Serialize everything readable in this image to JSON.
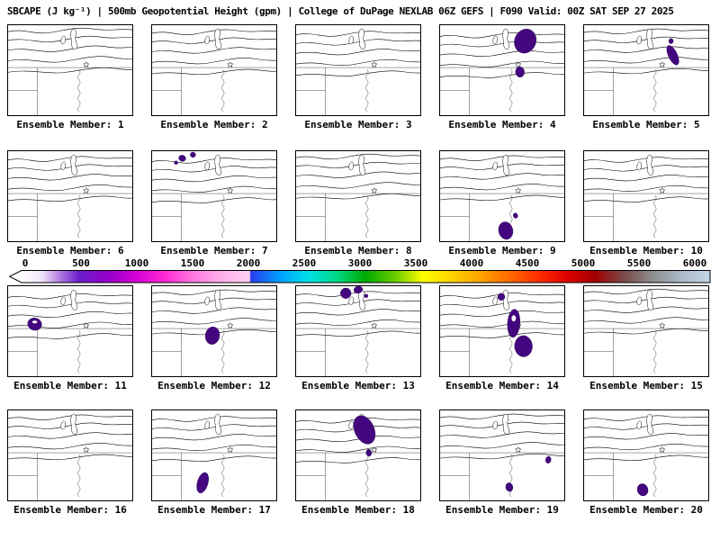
{
  "title": "SBCAPE (J kg⁻¹) | 500mb Geopotential Height (gpm) | College of DuPage NEXLAB 06Z GEFS | F090 Valid: 00Z SAT SEP 27 2025",
  "colors": {
    "line": "#000000",
    "border": "#444444",
    "cape_fill": "#43067e",
    "cape_stroke": "#2a0550"
  },
  "colorbar": {
    "min": 0,
    "max": 6000,
    "ticks": [
      "0",
      "500",
      "1000",
      "1500",
      "2000",
      "2500",
      "3000",
      "3500",
      "4000",
      "4500",
      "5000",
      "5500",
      "6000"
    ],
    "gradient": [
      [
        0,
        "#ffffff"
      ],
      [
        0.03,
        "#efe2f7"
      ],
      [
        0.055,
        "#b27fe0"
      ],
      [
        0.083,
        "#6a1fc8"
      ],
      [
        0.125,
        "#9400c8"
      ],
      [
        0.167,
        "#d400d4"
      ],
      [
        0.208,
        "#ff2ad4"
      ],
      [
        0.25,
        "#ff7ae0"
      ],
      [
        0.29,
        "#ffaeea"
      ],
      [
        0.331,
        "#ffd2f2"
      ],
      [
        0.333,
        "#2a3cee"
      ],
      [
        0.375,
        "#00a0ff"
      ],
      [
        0.417,
        "#00e0e8"
      ],
      [
        0.458,
        "#00d884"
      ],
      [
        0.5,
        "#00aa00"
      ],
      [
        0.542,
        "#66cc00"
      ],
      [
        0.583,
        "#ffff00"
      ],
      [
        0.625,
        "#ffd200"
      ],
      [
        0.667,
        "#ffa200"
      ],
      [
        0.708,
        "#ff6a00"
      ],
      [
        0.75,
        "#ff3000"
      ],
      [
        0.792,
        "#e00000"
      ],
      [
        0.833,
        "#a20000"
      ],
      [
        0.875,
        "#7a4a4a"
      ],
      [
        0.917,
        "#8f8f8f"
      ],
      [
        0.958,
        "#aab8c8"
      ],
      [
        1,
        "#c4d6e6"
      ]
    ]
  },
  "panels": [
    {
      "label": "Ensemble Member: 1",
      "blobs": []
    },
    {
      "label": "Ensemble Member: 2",
      "blobs": []
    },
    {
      "label": "Ensemble Member: 3",
      "blobs": []
    },
    {
      "label": "Ensemble Member: 4",
      "blobs": [
        [
          96,
          18,
          12,
          14,
          0
        ],
        [
          90,
          53,
          5,
          6,
          0
        ]
      ]
    },
    {
      "label": "Ensemble Member: 5",
      "blobs": [
        [
          100,
          34,
          5,
          12,
          0
        ],
        [
          98,
          18,
          2.5,
          3,
          0
        ]
      ]
    },
    {
      "label": "Ensemble Member: 6",
      "blobs": []
    },
    {
      "label": "Ensemble Member: 7",
      "blobs": [
        [
          34,
          8,
          4,
          3.5,
          0
        ],
        [
          46,
          4,
          3,
          3,
          0
        ],
        [
          27,
          13,
          2,
          2,
          0
        ]
      ]
    },
    {
      "label": "Ensemble Member: 8",
      "blobs": []
    },
    {
      "label": "Ensemble Member: 9",
      "blobs": [
        [
          74,
          90,
          8,
          10,
          0
        ],
        [
          85,
          73,
          2.5,
          3,
          0
        ]
      ]
    },
    {
      "label": "Ensemble Member: 10",
      "blobs": []
    },
    {
      "label": "Ensemble Member: 11",
      "blobs": [
        [
          30,
          43,
          8,
          7,
          1
        ]
      ]
    },
    {
      "label": "Ensemble Member: 12",
      "blobs": [
        [
          68,
          56,
          8,
          10,
          0
        ]
      ]
    },
    {
      "label": "Ensemble Member: 13",
      "blobs": [
        [
          56,
          8,
          6,
          6,
          0
        ],
        [
          70,
          4,
          5,
          4,
          0
        ],
        [
          79,
          11,
          2,
          2,
          0
        ]
      ]
    },
    {
      "label": "Ensemble Member: 14",
      "blobs": [
        [
          83,
          42,
          7,
          16,
          1
        ],
        [
          94,
          68,
          10,
          12,
          0
        ],
        [
          69,
          12,
          4,
          4,
          0
        ]
      ]
    },
    {
      "label": "Ensemble Member: 15",
      "blobs": []
    },
    {
      "label": "Ensemble Member: 16",
      "blobs": []
    },
    {
      "label": "Ensemble Member: 17",
      "blobs": [
        [
          57,
          82,
          6,
          12,
          0
        ]
      ]
    },
    {
      "label": "Ensemble Member: 18",
      "blobs": [
        [
          77,
          22,
          11,
          17,
          0
        ],
        [
          82,
          48,
          3,
          4,
          0
        ]
      ]
    },
    {
      "label": "Ensemble Member: 19",
      "blobs": [
        [
          78,
          87,
          4,
          5,
          0
        ],
        [
          122,
          56,
          3,
          4,
          0
        ]
      ]
    },
    {
      "label": "Ensemble Member: 20",
      "blobs": [
        [
          66,
          90,
          6,
          7,
          0
        ]
      ]
    }
  ]
}
